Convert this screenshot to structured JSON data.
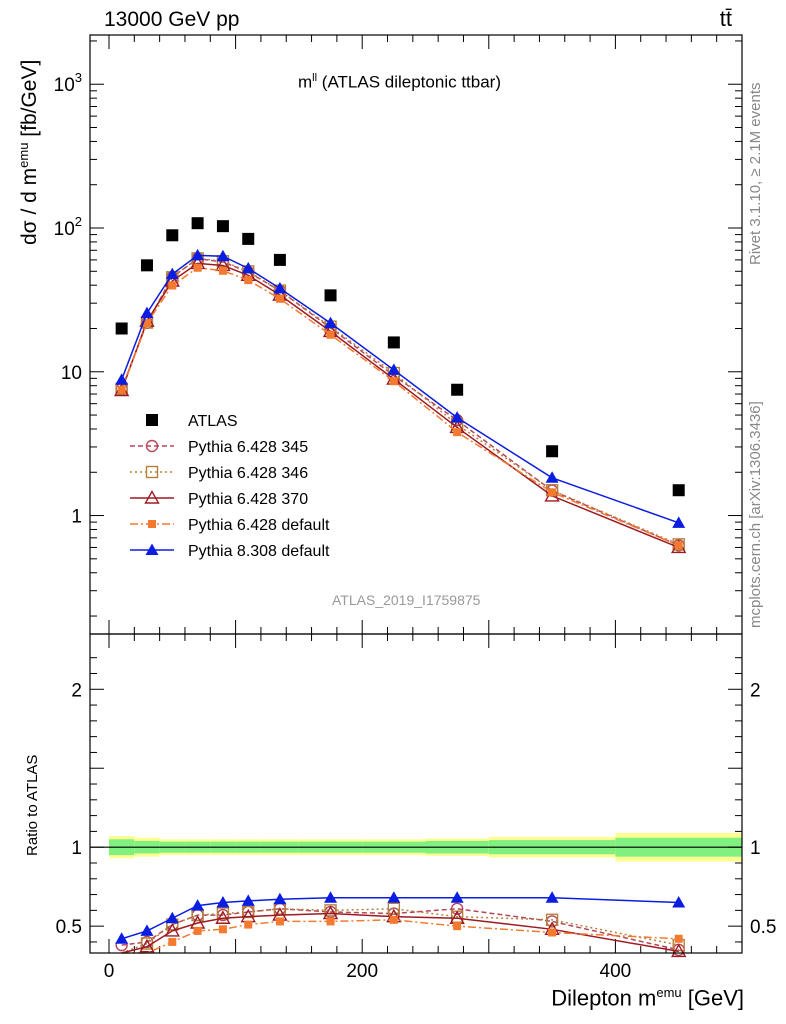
{
  "header": {
    "left": "13000 GeV pp",
    "right": "tt̄",
    "rivet": "Rivet 3.1.10, ≥ 2.1M events",
    "mcplots": "mcplots.cern.ch [arXiv:1306.3436]"
  },
  "main_plot": {
    "title": "m",
    "title_sup": "ll",
    "title_rest": " (ATLAS dileptonic ttbar)",
    "analysis_id": "ATLAS_2019_I1759875",
    "ylabel": "dσ / d m",
    "ylabel_sup": "emu",
    "ylabel_unit": " [fb/GeV]"
  },
  "ratio_plot": {
    "ylabel": "Ratio to ATLAS"
  },
  "x_axis": {
    "label": "Dilepton m",
    "label_sup": "emu",
    "label_unit": " [GeV]",
    "ticks": [
      "0",
      "200",
      "400"
    ]
  },
  "colors": {
    "atlas": "#000000",
    "p345": "#b5475a",
    "p346": "#b5803c",
    "p370": "#9e1a22",
    "p6def": "#f47a30",
    "p8def": "#0a1de0",
    "band_inner": "#80f080",
    "band_outer": "#ffff90"
  },
  "chart_data": {
    "type": "line",
    "x_unit": "GeV",
    "xlim": [
      -15,
      500
    ],
    "ylim_main": [
      0.15,
      2200
    ],
    "yscale_main": "log",
    "main_y_ticks": [
      "1",
      "10",
      "10^2",
      "10^3"
    ],
    "ylim_ratio": [
      0.33,
      2.35
    ],
    "ratio_y_ticks": [
      "0.5",
      "1",
      "2"
    ],
    "bins": [
      [
        0,
        20
      ],
      [
        20,
        40
      ],
      [
        40,
        60
      ],
      [
        60,
        80
      ],
      [
        80,
        100
      ],
      [
        100,
        120
      ],
      [
        120,
        150
      ],
      [
        150,
        200
      ],
      [
        200,
        250
      ],
      [
        250,
        300
      ],
      [
        300,
        400
      ],
      [
        400,
        500
      ]
    ],
    "x": [
      10,
      30,
      50,
      70,
      90,
      110,
      135,
      175,
      225,
      275,
      350,
      450
    ],
    "legend_position": "lower-left",
    "series": [
      {
        "name": "ATLAS",
        "key": "atlas",
        "marker": "square",
        "line": "none",
        "values": [
          20,
          55,
          89,
          108,
          103,
          84,
          60,
          34,
          16,
          7.5,
          2.8,
          1.5
        ],
        "band_inner": [
          0.05,
          0.04,
          0.035,
          0.035,
          0.035,
          0.035,
          0.035,
          0.035,
          0.035,
          0.04,
          0.045,
          0.06
        ],
        "band_outer": [
          0.07,
          0.06,
          0.05,
          0.05,
          0.05,
          0.05,
          0.05,
          0.05,
          0.05,
          0.055,
          0.065,
          0.09
        ]
      },
      {
        "name": "Pythia 6.428 345",
        "key": "p345",
        "marker": "open-circle",
        "line": "dashed",
        "values": [
          7.6,
          21.9,
          45.5,
          61.3,
          58.0,
          49.4,
          36.6,
          20.2,
          9.4,
          4.6,
          1.49,
          0.62
        ],
        "ratio": [
          0.38,
          0.4,
          0.51,
          0.57,
          0.57,
          0.59,
          0.61,
          0.59,
          0.58,
          0.61,
          0.53,
          0.35
        ]
      },
      {
        "name": "Pythia 6.428 346",
        "key": "p346",
        "marker": "open-square",
        "line": "dotted",
        "values": [
          7.6,
          22.0,
          45.4,
          61.5,
          58.7,
          49.9,
          36.7,
          20.6,
          9.8,
          4.3,
          1.5,
          0.63
        ],
        "ratio": [
          0.31,
          0.39,
          0.51,
          0.57,
          0.58,
          0.59,
          0.61,
          0.6,
          0.61,
          0.56,
          0.54,
          0.38
        ]
      },
      {
        "name": "Pythia 6.428 370",
        "key": "p370",
        "marker": "open-triangle",
        "line": "solid",
        "values": [
          7.4,
          22.5,
          42.8,
          56.7,
          54.9,
          46.9,
          34.2,
          19.1,
          8.9,
          4.1,
          1.37,
          0.6
        ],
        "ratio": [
          0.3,
          0.37,
          0.47,
          0.52,
          0.55,
          0.56,
          0.57,
          0.58,
          0.56,
          0.55,
          0.48,
          0.34
        ]
      },
      {
        "name": "Pythia 6.428 default",
        "key": "p6def",
        "marker": "filled-square",
        "line": "dashdot",
        "values": [
          7.5,
          21.8,
          39.8,
          52.9,
          50.4,
          43.4,
          32.2,
          18.1,
          8.6,
          3.8,
          1.45,
          0.62
        ],
        "ratio": [
          0.3,
          0.3,
          0.4,
          0.47,
          0.48,
          0.51,
          0.53,
          0.53,
          0.54,
          0.5,
          0.46,
          0.42
        ]
      },
      {
        "name": "Pythia 8.308 default",
        "key": "p8def",
        "marker": "filled-triangle",
        "line": "solid",
        "values": [
          8.8,
          25.6,
          47.8,
          64.5,
          63.6,
          52.4,
          38.0,
          21.8,
          10.3,
          4.8,
          1.83,
          0.89
        ],
        "ratio": [
          0.42,
          0.47,
          0.55,
          0.63,
          0.65,
          0.66,
          0.67,
          0.68,
          0.68,
          0.68,
          0.68,
          0.65
        ]
      }
    ]
  }
}
